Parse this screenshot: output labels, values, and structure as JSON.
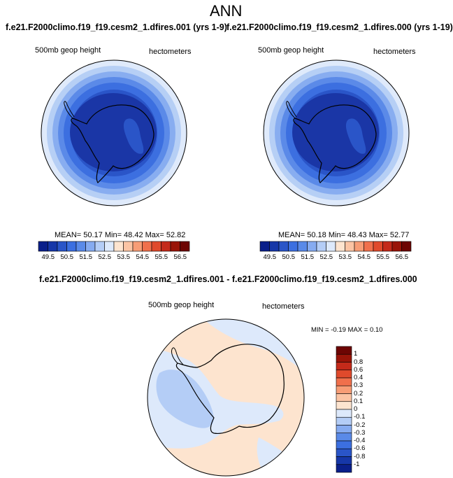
{
  "page": {
    "title": "ANN",
    "case_left": "f.e21.F2000climo.f19_f19.cesm2_1.dfires.001 (yrs 1-9)",
    "case_right": "f.e21.F2000climo.f19_f19.cesm2_1.dfires.000 (yrs 1-19)",
    "diff_title": "f.e21.F2000climo.f19_f19.cesm2_1.dfires.001 - f.e21.F2000climo.f19_f19.cesm2_1.dfires.000"
  },
  "panels": {
    "left": {
      "variable": "500mb geop height",
      "units": "hectometers",
      "stats": "MEAN= 50.17 Min= 48.42 Max= 52.82"
    },
    "right": {
      "variable": "500mb geop height",
      "units": "hectometers",
      "stats": "MEAN= 50.18 Min= 48.43 Max= 52.77"
    },
    "diff": {
      "variable": "500mb geop height",
      "units": "hectometers",
      "stats": "MIN = -0.19 MAX = 0.10"
    }
  },
  "colorbar_abs": {
    "colors": [
      "#0a1f8a",
      "#1637a8",
      "#2a55c8",
      "#3c6fe0",
      "#5a8ae8",
      "#86abf0",
      "#b4cdf6",
      "#dde9fb",
      "#fde4cf",
      "#fbc4a4",
      "#f79d76",
      "#f0704c",
      "#e04a2c",
      "#c42a1a",
      "#991408",
      "#6d0503"
    ],
    "labels": [
      "49.5",
      "50.5",
      "51.5",
      "52.5",
      "53.5",
      "54.5",
      "55.5",
      "56.5"
    ]
  },
  "colorbar_diff": {
    "colors": [
      "#0a1f8a",
      "#1637a8",
      "#2a55c8",
      "#3c6fe0",
      "#5a8ae8",
      "#86abf0",
      "#b4cdf6",
      "#dde9fb",
      "#fde4cf",
      "#fbc4a4",
      "#f79d76",
      "#f0704c",
      "#e04a2c",
      "#c42a1a",
      "#991408",
      "#6d0503"
    ],
    "labels": [
      "1",
      "0.8",
      "0.6",
      "0.4",
      "0.3",
      "0.2",
      "0.1",
      "0",
      "-0.1",
      "-0.2",
      "-0.3",
      "-0.4",
      "-0.6",
      "-0.8",
      "-1"
    ]
  }
}
